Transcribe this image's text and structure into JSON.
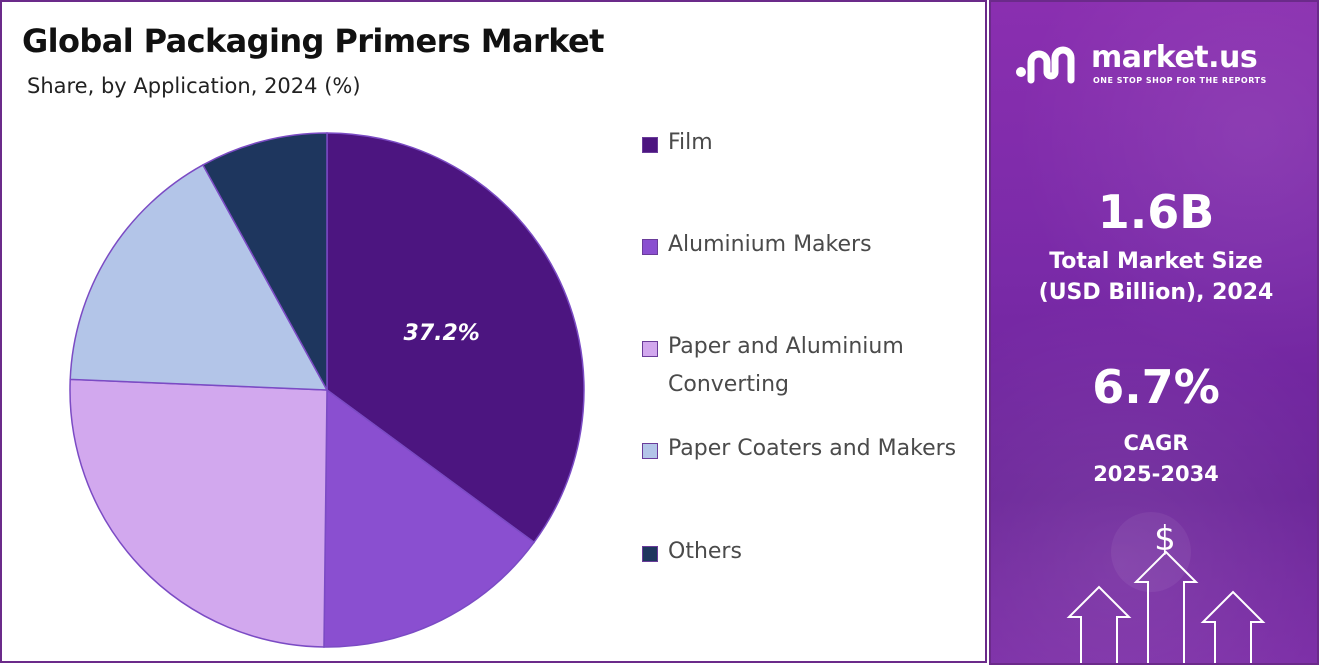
{
  "title": "Global Packaging Primers Market",
  "subtitle": "Share, by Application, 2024 (%)",
  "chart_data": {
    "type": "pie",
    "title": "Global Packaging Primers Market",
    "subtitle": "Share, by Application, 2024 (%)",
    "categories": [
      "Film",
      "Aluminium Makers",
      "Paper and Aluminium Converting",
      "Paper Coaters and Makers",
      "Others"
    ],
    "values": [
      37.2,
      16.0,
      27.0,
      17.3,
      8.5
    ],
    "colors": [
      "#4c1580",
      "#8a4fd0",
      "#d2a8ee",
      "#b3c5e8",
      "#1e365e"
    ],
    "data_labels": [
      "37.2%",
      "",
      "",
      "",
      ""
    ],
    "legend_position": "right"
  },
  "legend": [
    {
      "label": "Film",
      "color": "#4c1580"
    },
    {
      "label": "Aluminium Makers",
      "color": "#8a4fd0"
    },
    {
      "label": "Paper and Aluminium Converting",
      "color": "#d2a8ee"
    },
    {
      "label": "Paper Coaters and Makers",
      "color": "#b3c5e8"
    },
    {
      "label": "Others",
      "color": "#1e365e"
    }
  ],
  "side_panel": {
    "brand_name": "market.us",
    "brand_tagline": "ONE STOP SHOP FOR THE REPORTS",
    "market_size_value": "1.6B",
    "market_size_label_line1": "Total Market Size",
    "market_size_label_line2": "(USD Billion), 2024",
    "cagr_value": "6.7%",
    "cagr_label_line1": "CAGR",
    "cagr_label_line2": "2025-2034",
    "dollar_symbol": "$",
    "logo_icon": "market-us-logo-icon",
    "arrows_icon": "growth-arrows-icon"
  }
}
